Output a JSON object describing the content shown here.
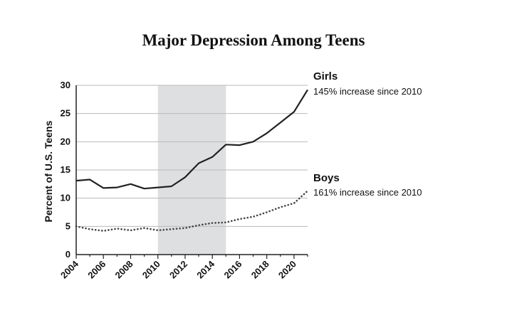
{
  "chart_data": {
    "type": "line",
    "title": "Major Depression Among Teens",
    "ylabel": "Percent of U.S. Teens",
    "xlabel": "",
    "xlim": [
      2004,
      2021
    ],
    "ylim": [
      0,
      30
    ],
    "yticks": [
      0,
      5,
      10,
      15,
      20,
      25,
      30
    ],
    "xticks": [
      2004,
      2006,
      2008,
      2010,
      2012,
      2014,
      2016,
      2018,
      2020
    ],
    "grid": true,
    "shaded_region": [
      2010,
      2015
    ],
    "x": [
      2004,
      2005,
      2006,
      2007,
      2008,
      2009,
      2010,
      2011,
      2012,
      2013,
      2014,
      2015,
      2016,
      2017,
      2018,
      2019,
      2020,
      2021
    ],
    "series": [
      {
        "name": "Girls",
        "annotation": "145% increase since 2010",
        "style": "solid",
        "color": "#222222",
        "values": [
          13.1,
          13.3,
          11.8,
          11.9,
          12.5,
          11.7,
          11.9,
          12.1,
          13.7,
          16.2,
          17.3,
          19.5,
          19.4,
          20.0,
          21.5,
          23.4,
          25.3,
          29.2
        ]
      },
      {
        "name": "Boys",
        "annotation": "161% increase since 2010",
        "style": "dotted",
        "color": "#444444",
        "values": [
          5.0,
          4.5,
          4.2,
          4.6,
          4.3,
          4.7,
          4.3,
          4.5,
          4.7,
          5.2,
          5.6,
          5.7,
          6.3,
          6.7,
          7.5,
          8.4,
          9.1,
          11.3
        ]
      }
    ]
  }
}
